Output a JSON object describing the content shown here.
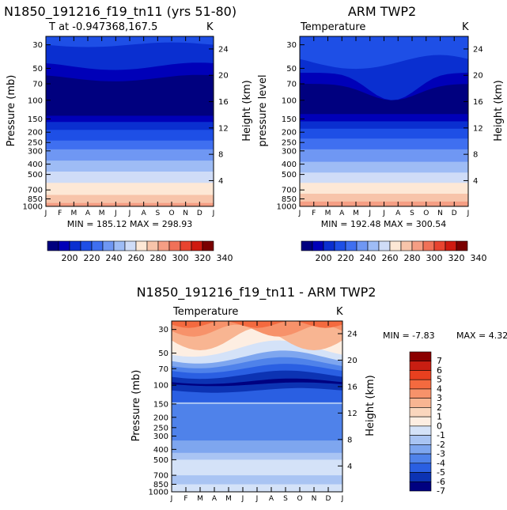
{
  "chart_data": [
    {
      "type": "contour",
      "title": "N1850_191216_f19_tn11 (yrs 51-80)",
      "subtitle": "T at -0.947368,167.5",
      "units": "K",
      "xlabel": "",
      "ylabel": "Pressure (mb)",
      "y2label": "Height (km)",
      "x_ticks": [
        "J",
        "F",
        "M",
        "A",
        "M",
        "J",
        "J",
        "A",
        "S",
        "O",
        "N",
        "D",
        "J"
      ],
      "y_ticks": [
        30,
        50,
        70,
        100,
        150,
        200,
        250,
        300,
        400,
        500,
        700,
        850,
        1000
      ],
      "y2_ticks": [
        24,
        20,
        16,
        12,
        8,
        4
      ],
      "ylim": [
        1000,
        25
      ],
      "stats": "MIN = 185.12 MAX = 298.93",
      "colorbar": [
        "200",
        "220",
        "240",
        "260",
        "280",
        "300",
        "320",
        "340"
      ]
    },
    {
      "type": "contour",
      "title": "ARM TWP2",
      "subtitle": "Temperature",
      "units": "K",
      "xlabel": "",
      "ylabel": "pressure level",
      "y2label": "Height (km)",
      "x_ticks": [
        "J",
        "F",
        "M",
        "A",
        "M",
        "J",
        "J",
        "A",
        "S",
        "O",
        "N",
        "D",
        "J"
      ],
      "y_ticks": [
        30,
        50,
        70,
        100,
        150,
        200,
        250,
        300,
        400,
        500,
        700,
        850,
        1000
      ],
      "y2_ticks": [
        24,
        20,
        16,
        12,
        8,
        4
      ],
      "ylim": [
        1000,
        25
      ],
      "stats": "MIN = 192.48 MAX = 300.54",
      "colorbar": [
        "200",
        "220",
        "240",
        "260",
        "280",
        "300",
        "320",
        "340"
      ]
    },
    {
      "type": "contour",
      "title": "N1850_191216_f19_tn11 - ARM TWP2",
      "subtitle": "Temperature",
      "units": "K",
      "xlabel": "",
      "ylabel": "Pressure (mb)",
      "y2label": "Height (km)",
      "x_ticks": [
        "J",
        "F",
        "M",
        "A",
        "M",
        "J",
        "J",
        "A",
        "S",
        "O",
        "N",
        "D",
        "J"
      ],
      "y_ticks": [
        30,
        50,
        70,
        100,
        150,
        200,
        250,
        300,
        400,
        500,
        700,
        850,
        1000
      ],
      "y2_ticks": [
        24,
        20,
        16,
        12,
        8,
        4
      ],
      "ylim": [
        1000,
        25
      ],
      "stats_min": "MIN = -7.83",
      "stats_max": "MAX = 4.32",
      "colorbar": [
        "7",
        "6",
        "5",
        "4",
        "3",
        "2",
        "1",
        "0",
        "-1",
        "-2",
        "-3",
        "-4",
        "-5",
        "-6",
        "-7"
      ]
    }
  ],
  "colors": {
    "abs_scale": [
      "#00007f",
      "#0000b8",
      "#0a2fd0",
      "#1e4fe6",
      "#3f6ff0",
      "#6f97f3",
      "#9ebcf5",
      "#cfdcf7",
      "#fde8d6",
      "#f7c4aa",
      "#f59e84",
      "#f07158",
      "#e84430",
      "#cf1a10",
      "#7a0000"
    ],
    "diff_scale": [
      "#8b0000",
      "#c81e12",
      "#e8401f",
      "#f46a3f",
      "#f7926a",
      "#f8b592",
      "#fad6bd",
      "#fdeee2",
      "#d4e2f8",
      "#a9c4f3",
      "#7ea6ef",
      "#4f82ea",
      "#2a5fe2",
      "#0c33b3",
      "#000080"
    ]
  }
}
